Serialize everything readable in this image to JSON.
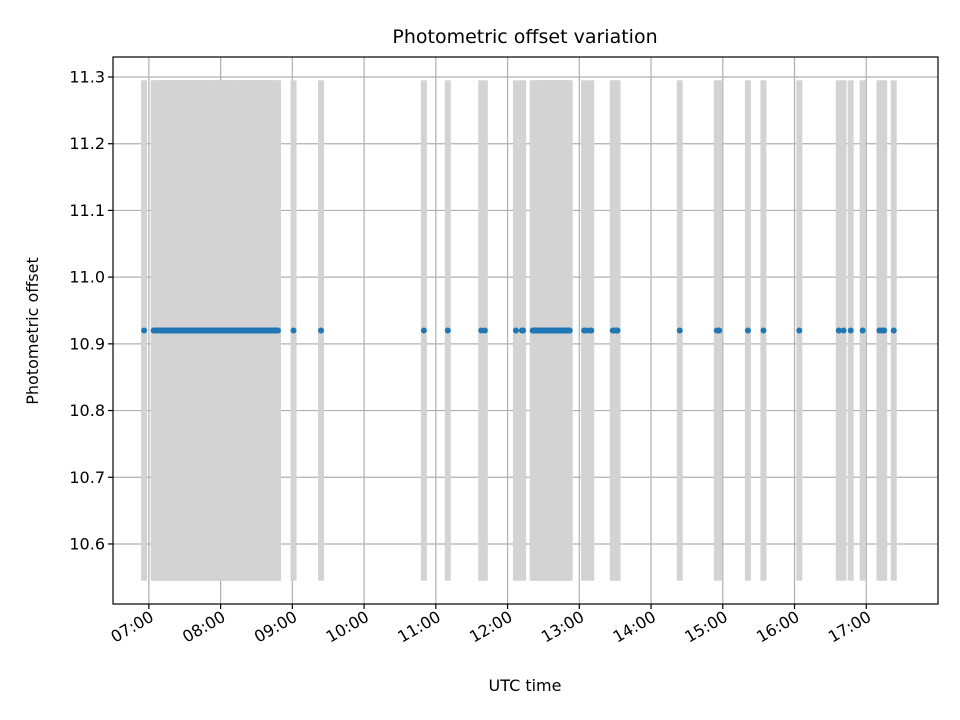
{
  "chart_data": {
    "type": "scatter",
    "title": "Photometric offset variation",
    "xlabel": "UTC time",
    "ylabel": "Photometric offset",
    "grid": true,
    "xlim": [
      "06:30",
      "18:00"
    ],
    "ylim": [
      10.51,
      11.33
    ],
    "xticks": [
      "07:00",
      "08:00",
      "09:00",
      "10:00",
      "11:00",
      "12:00",
      "13:00",
      "14:00",
      "15:00",
      "16:00",
      "17:00"
    ],
    "yticks": [
      "10.6",
      "10.7",
      "10.8",
      "10.9",
      "11.0",
      "11.1",
      "11.2",
      "11.3"
    ],
    "point_color": "#1f77b4",
    "band_color": "#d3d3d3",
    "band_range": [
      10.545,
      11.295
    ],
    "observation_times": [
      "06:56",
      "07:04",
      "07:05",
      "07:06",
      "07:07",
      "07:08",
      "07:09",
      "07:10",
      "07:11",
      "07:12",
      "07:13",
      "07:14",
      "07:15",
      "07:16",
      "07:17",
      "07:18",
      "07:19",
      "07:20",
      "07:21",
      "07:22",
      "07:23",
      "07:24",
      "07:25",
      "07:26",
      "07:27",
      "07:28",
      "07:29",
      "07:30",
      "07:31",
      "07:32",
      "07:33",
      "07:34",
      "07:35",
      "07:36",
      "07:37",
      "07:38",
      "07:39",
      "07:40",
      "07:41",
      "07:42",
      "07:43",
      "07:44",
      "07:45",
      "07:46",
      "07:47",
      "07:48",
      "07:49",
      "07:50",
      "07:51",
      "07:52",
      "07:53",
      "07:54",
      "07:55",
      "07:56",
      "07:57",
      "07:58",
      "07:59",
      "08:00",
      "08:01",
      "08:02",
      "08:03",
      "08:04",
      "08:05",
      "08:06",
      "08:07",
      "08:08",
      "08:09",
      "08:10",
      "08:11",
      "08:12",
      "08:13",
      "08:14",
      "08:15",
      "08:16",
      "08:17",
      "08:18",
      "08:19",
      "08:20",
      "08:21",
      "08:22",
      "08:23",
      "08:24",
      "08:25",
      "08:26",
      "08:27",
      "08:28",
      "08:29",
      "08:30",
      "08:31",
      "08:32",
      "08:33",
      "08:34",
      "08:35",
      "08:36",
      "08:37",
      "08:38",
      "08:39",
      "08:40",
      "08:41",
      "08:42",
      "08:43",
      "08:44",
      "08:45",
      "08:46",
      "08:47",
      "08:48",
      "09:01",
      "09:24",
      "10:50",
      "11:10",
      "11:38",
      "11:41",
      "12:07",
      "12:12",
      "12:13",
      "12:21",
      "12:22",
      "12:23",
      "12:24",
      "12:25",
      "12:26",
      "12:27",
      "12:28",
      "12:29",
      "12:30",
      "12:31",
      "12:32",
      "12:33",
      "12:34",
      "12:35",
      "12:36",
      "12:37",
      "12:38",
      "12:39",
      "12:40",
      "12:41",
      "12:42",
      "12:43",
      "12:44",
      "12:45",
      "12:46",
      "12:47",
      "12:48",
      "12:49",
      "12:50",
      "12:51",
      "12:52",
      "13:04",
      "13:06",
      "13:09",
      "13:10",
      "13:28",
      "13:29",
      "13:31",
      "13:32",
      "14:24",
      "14:55",
      "14:57",
      "15:21",
      "15:34",
      "16:04",
      "16:37",
      "16:41",
      "16:47",
      "16:57",
      "17:11",
      "17:13",
      "17:15",
      "17:23"
    ],
    "series": [
      {
        "y": 10.92
      }
    ]
  }
}
